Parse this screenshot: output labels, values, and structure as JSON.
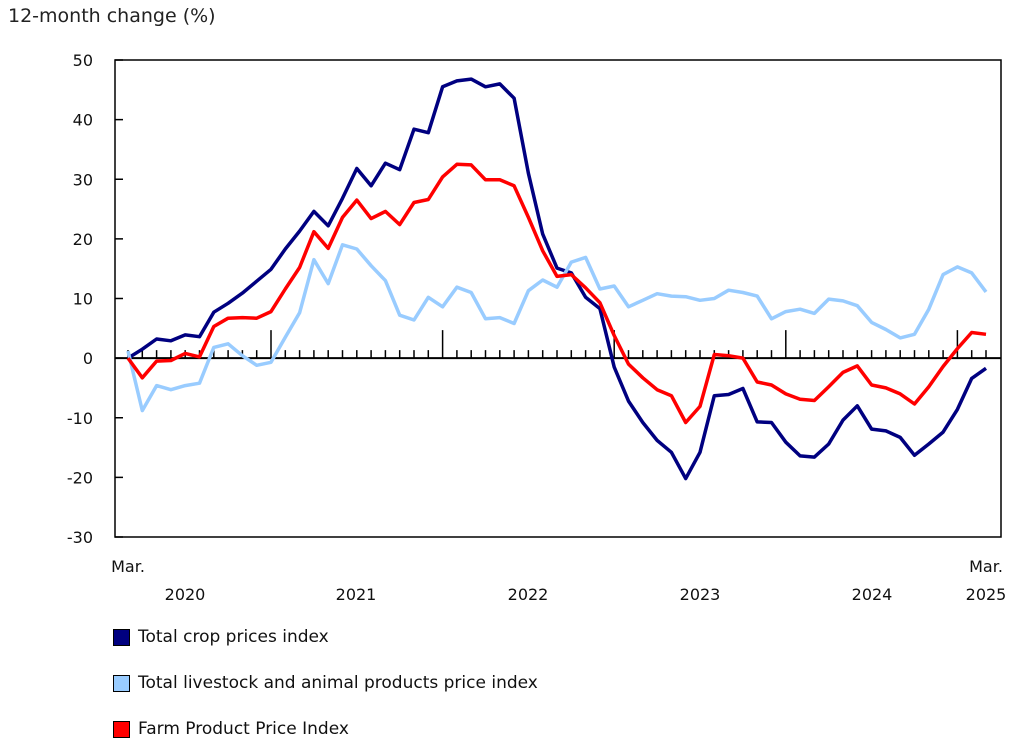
{
  "chart_data": {
    "type": "line",
    "title": "",
    "ylabel": "12-month change (%)",
    "xlabel": "",
    "ylim": [
      -30,
      50
    ],
    "yticks": [
      50,
      40,
      30,
      20,
      10,
      0,
      -10,
      -20,
      -30
    ],
    "x_start": "Mar. 2020",
    "x_end": "Mar. 2025",
    "x_first_label": "Mar.",
    "x_last_label": "Mar.",
    "year_labels": [
      "2020",
      "2021",
      "2022",
      "2023",
      "2024",
      "2025"
    ],
    "grid": false,
    "legend_placement": "bottom",
    "series": [
      {
        "name": "Total crop prices index",
        "color": "#000080",
        "values": [
          0,
          1.5,
          3.2,
          2.9,
          3.9,
          3.6,
          7.7,
          9.2,
          10.9,
          12.9,
          14.9,
          18.3,
          21.3,
          24.6,
          22.2,
          26.8,
          31.8,
          28.9,
          32.7,
          31.6,
          38.4,
          37.8,
          45.5,
          46.5,
          46.8,
          45.5,
          46.0,
          43.6,
          31.0,
          20.8,
          15.1,
          14.3,
          10.2,
          8.3,
          -1.5,
          -7.2,
          -10.8,
          -13.8,
          -15.8,
          -20.2,
          -15.8,
          -6.3,
          -6.1,
          -5.1,
          -10.7,
          -10.8,
          -14.1,
          -16.4,
          -16.6,
          -14.4,
          -10.4,
          -8.0,
          -11.9,
          -12.2,
          -13.3,
          -16.3,
          -14.4,
          -12.4,
          -8.6,
          -3.4,
          -1.7
        ]
      },
      {
        "name": "Total livestock and animal products price index",
        "color": "#99ccff",
        "values": [
          1.2,
          -8.8,
          -4.6,
          -5.3,
          -4.6,
          -4.2,
          1.8,
          2.4,
          0.4,
          -1.2,
          -0.7,
          3.5,
          7.6,
          16.5,
          12.5,
          19.0,
          18.3,
          15.5,
          13.0,
          7.2,
          6.4,
          10.2,
          8.6,
          11.9,
          11.0,
          6.6,
          6.8,
          5.8,
          11.3,
          13.1,
          11.9,
          16.1,
          16.9,
          11.6,
          12.1,
          8.6,
          9.7,
          10.8,
          10.4,
          10.3,
          9.7,
          10.0,
          11.4,
          11.0,
          10.4,
          6.6,
          7.8,
          8.2,
          7.5,
          9.9,
          9.6,
          8.8,
          6.0,
          4.8,
          3.4,
          4.0,
          8.2,
          14.0,
          15.3,
          14.3,
          11.1
        ]
      },
      {
        "name": "Farm Product Price Index",
        "color": "#ff0000",
        "values": [
          0,
          -3.3,
          -0.5,
          -0.4,
          0.8,
          0.2,
          5.3,
          6.7,
          6.8,
          6.7,
          7.8,
          11.6,
          15.2,
          21.2,
          18.4,
          23.6,
          26.5,
          23.4,
          24.6,
          22.4,
          26.1,
          26.6,
          30.4,
          32.5,
          32.4,
          29.9,
          29.9,
          28.9,
          23.6,
          18.0,
          13.7,
          14.0,
          11.8,
          9.3,
          3.8,
          -1.0,
          -3.3,
          -5.3,
          -6.3,
          -10.8,
          -8.1,
          0.6,
          0.4,
          0.0,
          -4.0,
          -4.5,
          -6.0,
          -6.9,
          -7.1,
          -4.8,
          -2.4,
          -1.3,
          -4.5,
          -5.0,
          -6.0,
          -7.7,
          -4.8,
          -1.4,
          1.6,
          4.3,
          4.0
        ]
      }
    ]
  }
}
